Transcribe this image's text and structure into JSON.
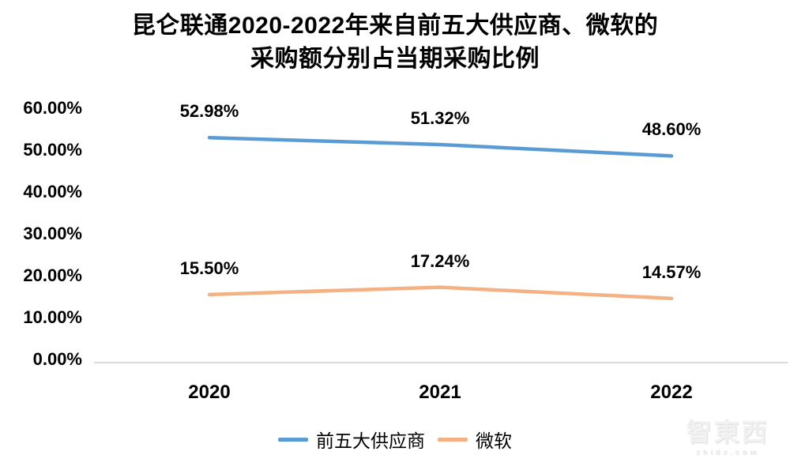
{
  "chart_data": {
    "type": "line",
    "title": "昆仑联通2020-2022年来自前五大供应商、微软的采购额分别占当期采购比例",
    "title_lines": [
      "昆仑联通2020-2022年来自前五大供应商、微软的",
      "采购额分别占当期采购比例"
    ],
    "categories": [
      "2020",
      "2021",
      "2022"
    ],
    "series": [
      {
        "name": "前五大供应商",
        "color": "#5B9BD5",
        "values": [
          52.98,
          51.32,
          48.6
        ],
        "labels": [
          "52.98%",
          "51.32%",
          "48.60%"
        ]
      },
      {
        "name": "微软",
        "color": "#F4B183",
        "values": [
          15.5,
          17.24,
          14.57
        ],
        "labels": [
          "15.50%",
          "17.24%",
          "14.57%"
        ]
      }
    ],
    "xlabel": "",
    "ylabel": "",
    "ylim": [
      0,
      60
    ],
    "yticks": [
      "60.00%",
      "50.00%",
      "40.00%",
      "30.00%",
      "20.00%",
      "10.00%",
      "0.00%"
    ],
    "grid": false,
    "legend_position": "bottom"
  },
  "watermark": {
    "text": "智東西",
    "subtext": "zhidx.com"
  }
}
